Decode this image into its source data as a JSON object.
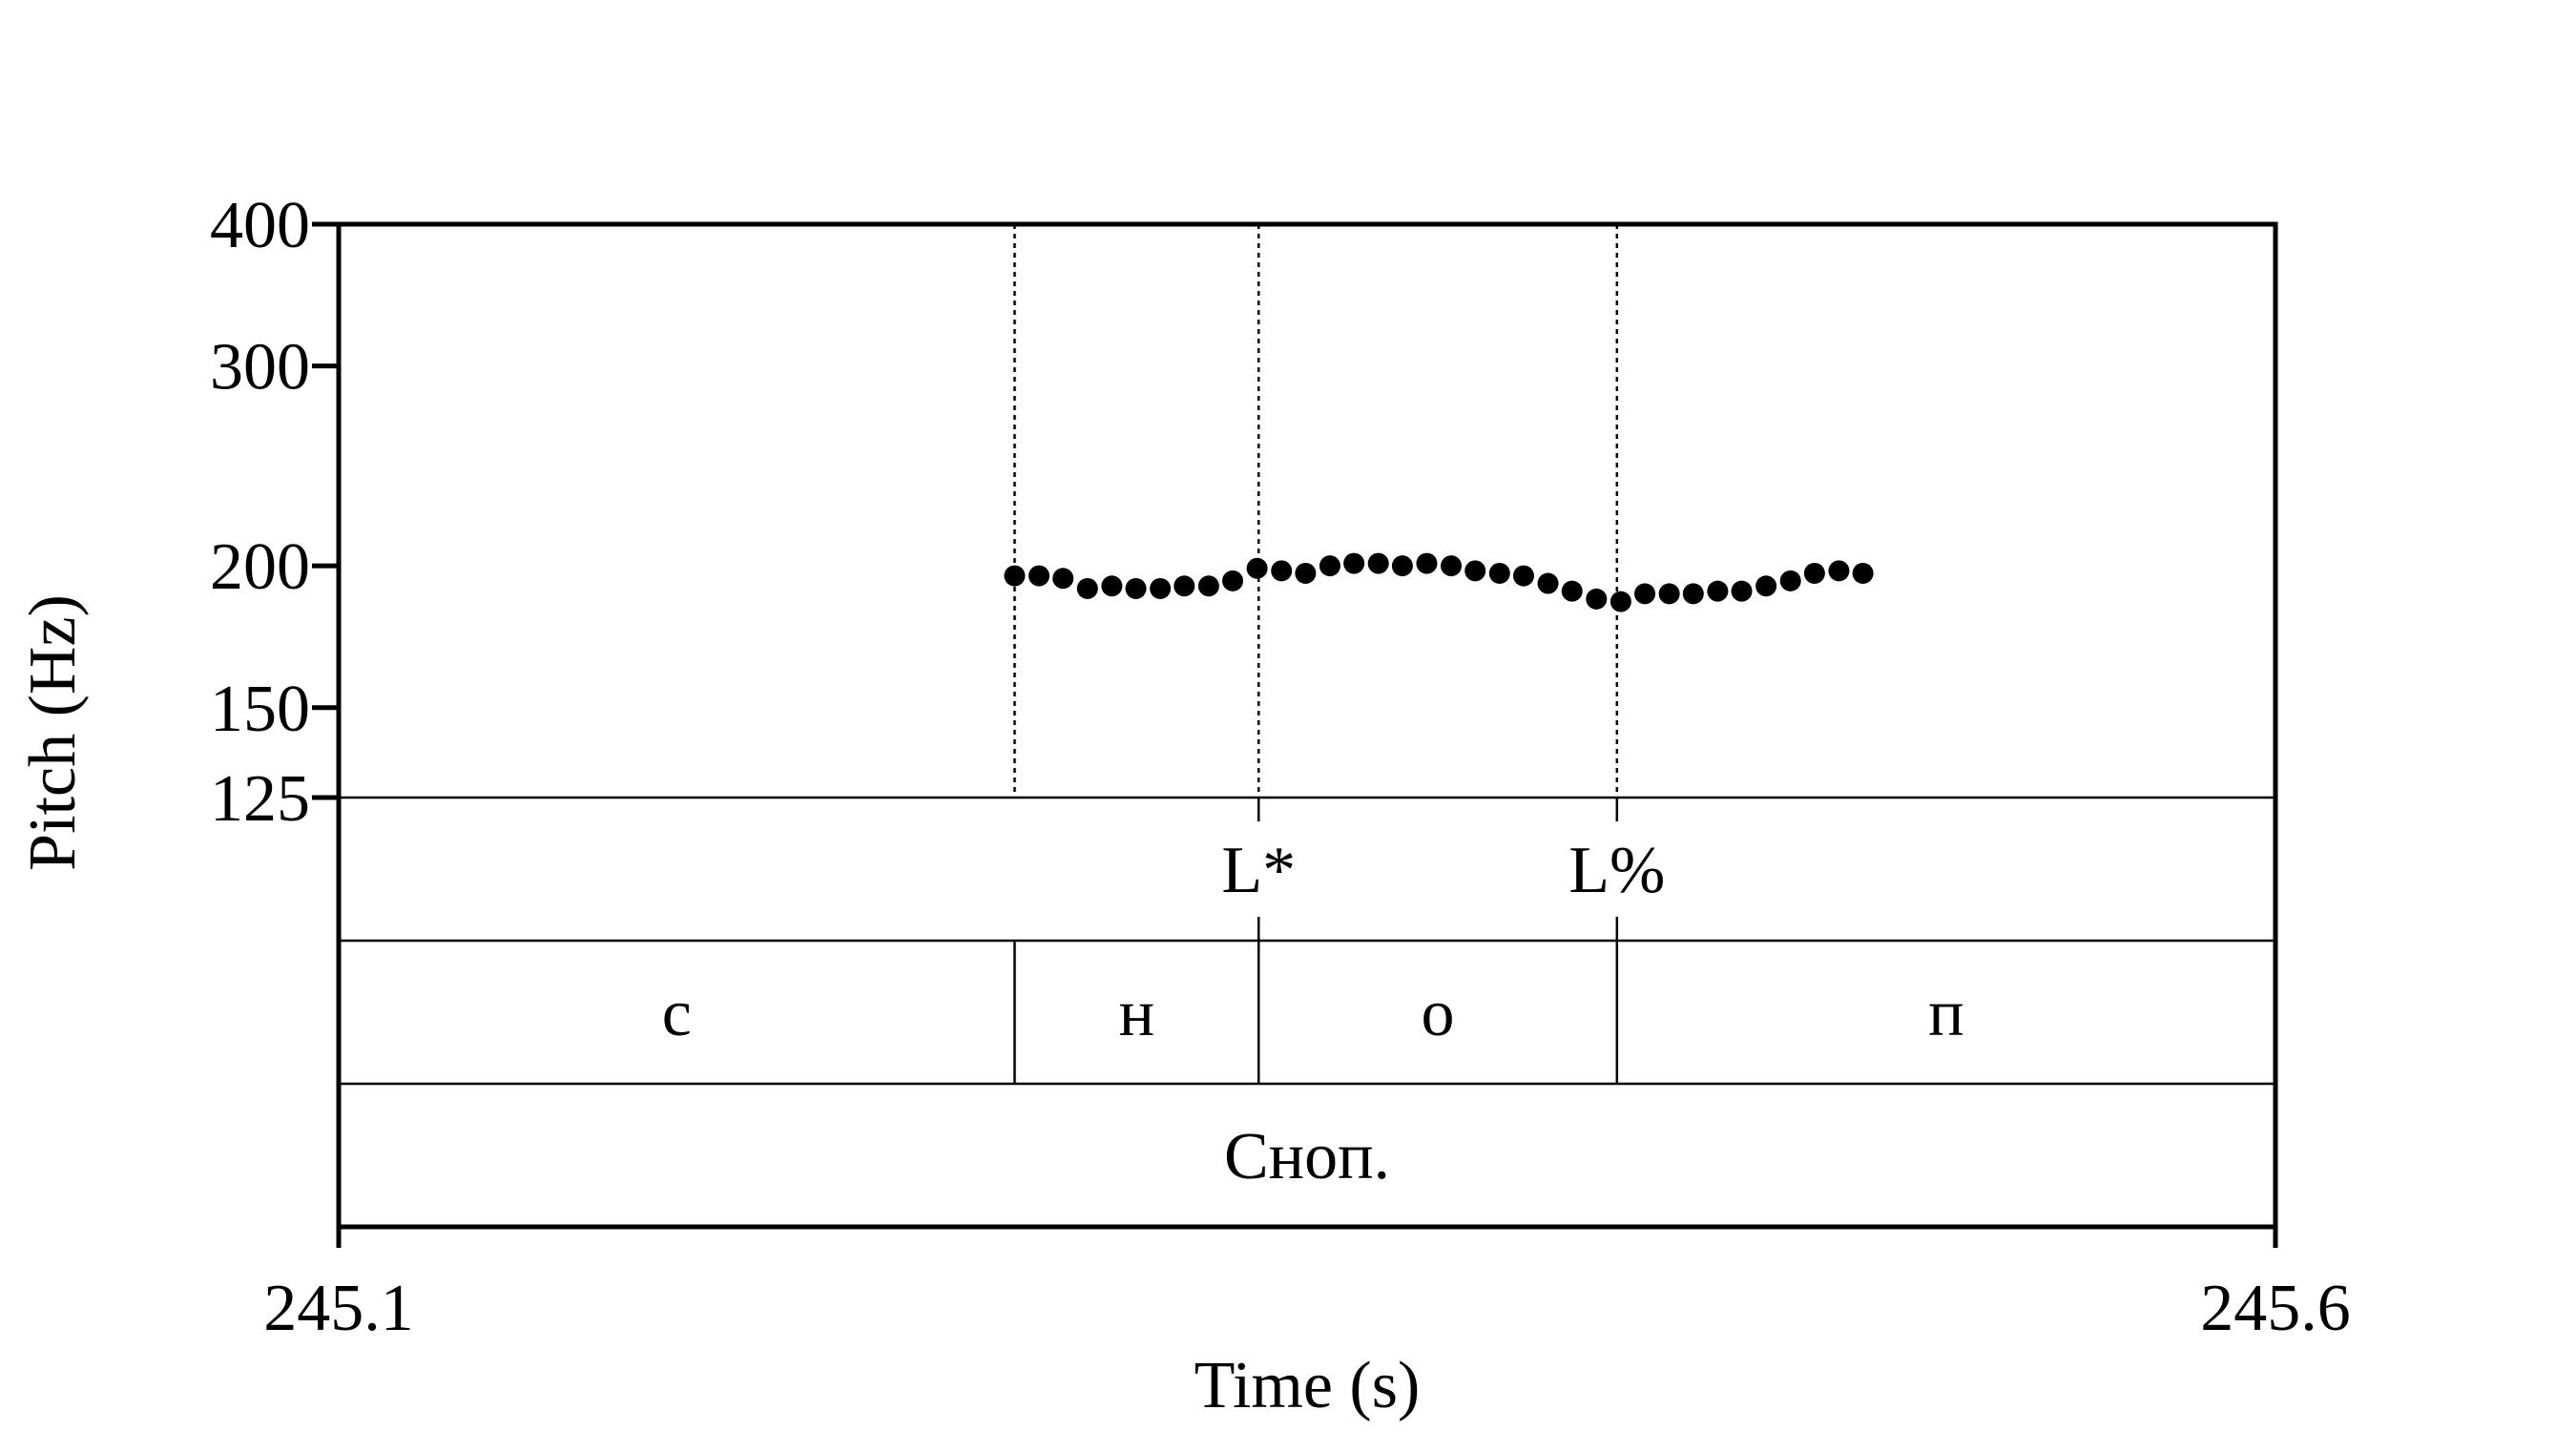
{
  "chart_data": {
    "type": "scatter",
    "title": "",
    "xlabel": "Time (s)",
    "ylabel": "Pitch (Hz)",
    "xlim": [
      245.1,
      245.6
    ],
    "ylim": [
      125,
      400
    ],
    "y_scale": "log",
    "grid": false,
    "legend": "none",
    "colors": {
      "points": "#000000",
      "lines": "#000000",
      "background": "#ffffff"
    },
    "x_ticks": [
      "245.1",
      "245.6"
    ],
    "y_ticks": [
      "400",
      "300",
      "200",
      "150",
      "125"
    ],
    "y_tick_values": [
      400,
      300,
      200,
      150,
      125
    ],
    "x_tick_values": [
      245.1,
      245.6
    ],
    "series": [
      {
        "x": [
          245.2745,
          245.2808,
          245.287,
          245.2933,
          245.2996,
          245.3058,
          245.3121,
          245.3183,
          245.3246,
          245.3308,
          245.3371,
          245.3434,
          245.3496,
          245.3559,
          245.3621,
          245.3684,
          245.3746,
          245.3809,
          245.3872,
          245.3934,
          245.3997,
          245.4059,
          245.4122,
          245.4184,
          245.4247,
          245.431,
          245.4372,
          245.4435,
          245.4497,
          245.456,
          245.4622,
          245.4685,
          245.4748,
          245.481,
          245.4873,
          245.4935
        ],
        "y": [
          196,
          196,
          195,
          191,
          192,
          191,
          191,
          192,
          192,
          194,
          199,
          198,
          197,
          200,
          201,
          201,
          200,
          201,
          200,
          198,
          197,
          196,
          193,
          190,
          187,
          186,
          189,
          189,
          189,
          190,
          190,
          192,
          194,
          197,
          198,
          197
        ]
      }
    ],
    "boundaries": [
      245.2745,
      245.3375,
      245.43
    ],
    "tiers": [
      {
        "intervals": [],
        "points": [
          {
            "time": 245.3375,
            "label": "L*"
          },
          {
            "time": 245.43,
            "label": "L%"
          }
        ]
      },
      {
        "intervals": [
          {
            "start": 245.1,
            "end": 245.2745,
            "label": "с"
          },
          {
            "start": 245.2745,
            "end": 245.3375,
            "label": "н"
          },
          {
            "start": 245.3375,
            "end": 245.43,
            "label": "о"
          },
          {
            "start": 245.43,
            "end": 245.6,
            "label": "п"
          }
        ],
        "points": []
      },
      {
        "intervals": [
          {
            "start": 245.1,
            "end": 245.6,
            "label": "Сноп."
          }
        ],
        "points": []
      }
    ]
  }
}
